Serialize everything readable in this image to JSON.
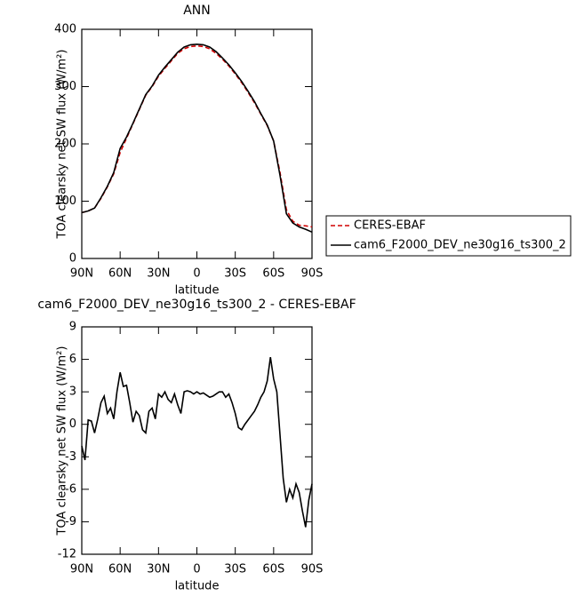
{
  "chart_data": [
    {
      "type": "line",
      "title": "ANN",
      "xlabel": "latitude",
      "ylabel": "TOA clearsky net SW flux (W/m²)",
      "x": [
        90,
        85,
        80,
        75,
        70,
        65,
        60,
        55,
        50,
        45,
        40,
        35,
        30,
        25,
        20,
        15,
        10,
        5,
        0,
        -5,
        -10,
        -15,
        -20,
        -25,
        -30,
        -35,
        -40,
        -45,
        -50,
        -55,
        -60,
        -65,
        -70,
        -75,
        -80,
        -85,
        -90
      ],
      "series": [
        {
          "name": "CERES-EBAF",
          "color": "#d00000",
          "linestyle": "dashed",
          "values": [
            80,
            83,
            88,
            105,
            125,
            148,
            185,
            210,
            235,
            260,
            285,
            300,
            318,
            332,
            345,
            358,
            366,
            370,
            371,
            370,
            366,
            358,
            348,
            336,
            322,
            307,
            290,
            272,
            252,
            232,
            205,
            150,
            85,
            65,
            58,
            57,
            55
          ]
        },
        {
          "name": "cam6_F2000_DEV_ne30g16_ts300_2",
          "color": "#000000",
          "linestyle": "solid",
          "values": [
            80,
            83,
            88,
            106,
            126,
            150,
            192,
            212,
            236,
            261,
            286,
            301,
            320,
            334,
            347,
            360,
            369,
            373,
            374,
            373,
            369,
            361,
            350,
            338,
            324,
            309,
            292,
            274,
            253,
            233,
            205,
            145,
            78,
            62,
            55,
            51,
            46
          ]
        }
      ],
      "xlim": [
        90,
        -90
      ],
      "xticks": [
        {
          "value": 90,
          "label": "90N"
        },
        {
          "value": 60,
          "label": "60N"
        },
        {
          "value": 30,
          "label": "30N"
        },
        0,
        {
          "value": -30,
          "label": "30S"
        },
        {
          "value": -60,
          "label": "60S"
        },
        {
          "value": -90,
          "label": "90S"
        }
      ],
      "ylim": [
        0,
        400
      ],
      "yticks": [
        0,
        100,
        200,
        300,
        400
      ]
    },
    {
      "type": "line",
      "title": "cam6_F2000_DEV_ne30g16_ts300_2 - CERES-EBAF",
      "xlabel": "latitude",
      "ylabel": "TOA clearsky net SW flux (W/m²)",
      "x": [
        90,
        87.5,
        85,
        82.5,
        80,
        77.5,
        75,
        72.5,
        70,
        67.5,
        65,
        62.5,
        60,
        57.5,
        55,
        52.5,
        50,
        47.5,
        45,
        42.5,
        40,
        37.5,
        35,
        32.5,
        30,
        27.5,
        25,
        22.5,
        20,
        17.5,
        15,
        12.5,
        10,
        7.5,
        5,
        2.5,
        0,
        -2.5,
        -5,
        -7.5,
        -10,
        -12.5,
        -15,
        -17.5,
        -20,
        -22.5,
        -25,
        -27.5,
        -30,
        -32.5,
        -35,
        -37.5,
        -40,
        -42.5,
        -45,
        -47.5,
        -50,
        -52.5,
        -55,
        -57.5,
        -60,
        -62.5,
        -65,
        -67.5,
        -70,
        -72.5,
        -75,
        -77.5,
        -80,
        -82.5,
        -85,
        -87.5,
        -90
      ],
      "series": [
        {
          "color": "#000000",
          "linestyle": "solid",
          "values": [
            -2,
            -3.3,
            0.4,
            0.3,
            -0.8,
            0.5,
            2.0,
            2.6,
            1.0,
            1.5,
            0.5,
            3.0,
            4.8,
            3.5,
            3.6,
            2.0,
            0.2,
            1.2,
            0.8,
            -0.5,
            -0.8,
            1.2,
            1.5,
            0.5,
            2.8,
            2.5,
            3.0,
            2.3,
            2.0,
            2.8,
            1.8,
            1.0,
            3.0,
            3.1,
            3.0,
            2.8,
            3.0,
            2.8,
            2.9,
            2.7,
            2.5,
            2.6,
            2.8,
            3.0,
            3.0,
            2.5,
            2.8,
            2.0,
            1.0,
            -0.3,
            -0.5,
            0,
            0.4,
            0.8,
            1.2,
            1.8,
            2.5,
            3.0,
            4.0,
            6.2,
            4.2,
            3.0,
            -1.0,
            -5.0,
            -7.2,
            -6.0,
            -6.8,
            -5.5,
            -6.3,
            -8.0,
            -9.5,
            -7.0,
            -5.5
          ]
        }
      ],
      "xlim": [
        90,
        -90
      ],
      "xticks": [
        {
          "value": 90,
          "label": "90N"
        },
        {
          "value": 60,
          "label": "60N"
        },
        {
          "value": 30,
          "label": "30N"
        },
        0,
        {
          "value": -30,
          "label": "30S"
        },
        {
          "value": -60,
          "label": "60S"
        },
        {
          "value": -90,
          "label": "90S"
        }
      ],
      "ylim": [
        -12,
        9
      ],
      "yticks": [
        -12,
        -9,
        -6,
        -3,
        0,
        3,
        6,
        9
      ]
    }
  ]
}
